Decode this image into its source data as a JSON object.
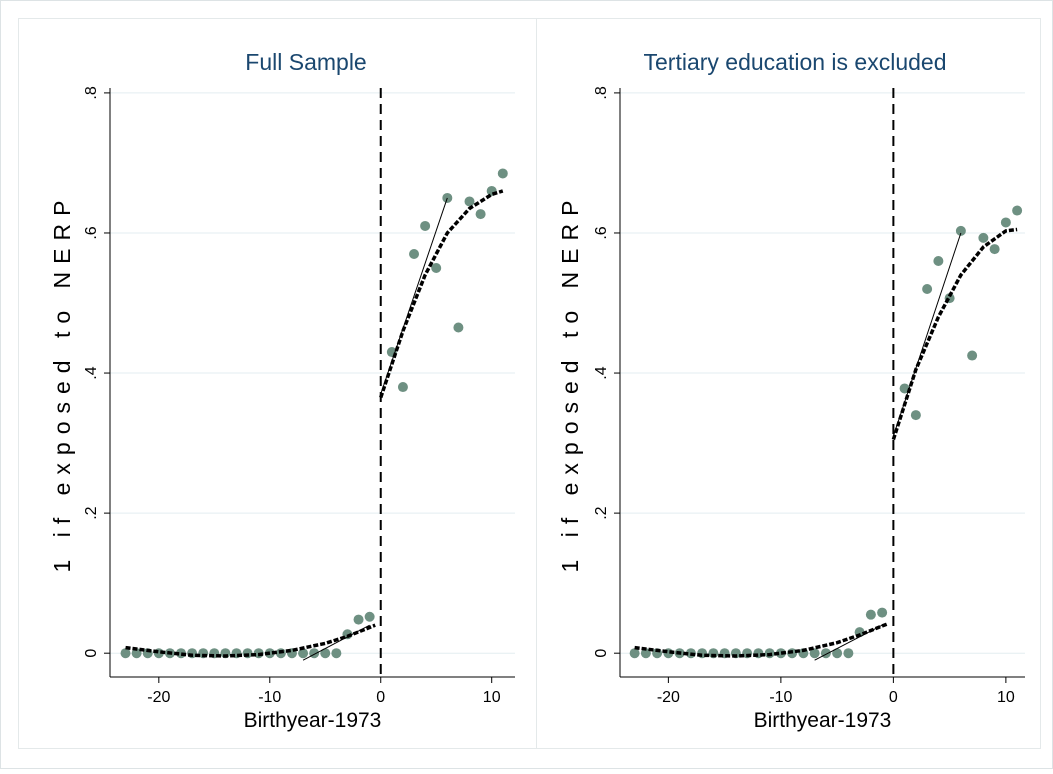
{
  "chart_data": [
    {
      "type": "scatter",
      "title": "Full Sample",
      "x_label": "Birthyear-1973",
      "y_label": "1 if exposed to NERP",
      "xlim": [
        -24.4,
        12.1
      ],
      "ylim": [
        -0.034,
        0.807
      ],
      "xticks": [
        -20,
        -10,
        0,
        10
      ],
      "yticks": [
        0,
        {
          "value": 0.2,
          "label": ".2"
        },
        {
          "value": 0.4,
          "label": ".4"
        },
        {
          "value": 0.6,
          "label": ".6"
        },
        {
          "value": 0.8,
          "label": ".8"
        }
      ],
      "grid": true,
      "xline": 0,
      "series": [
        {
          "style": "markers",
          "color": "#6e9082",
          "x": [
            -23,
            -22,
            -21,
            -20,
            -19,
            -18,
            -17,
            -16,
            -15,
            -14,
            -13,
            -12,
            -11,
            -10,
            -9,
            -8,
            -7,
            -6,
            -5,
            -4,
            -3,
            -2,
            -1,
            1,
            2,
            3,
            4,
            5,
            6,
            7,
            8,
            9,
            10,
            11
          ],
          "values": [
            0,
            0,
            0,
            0,
            0,
            0,
            0,
            0,
            0,
            0,
            0,
            0,
            0,
            0,
            0,
            0,
            0,
            0,
            0,
            0,
            0.027,
            0.048,
            0.052,
            0.43,
            0.38,
            0.57,
            0.61,
            0.55,
            0.65,
            0.465,
            0.645,
            0.627,
            0.66,
            0.685
          ]
        },
        {
          "style": "dashed",
          "color": "#000000",
          "x": [
            -23,
            -20,
            -17,
            -14,
            -11,
            -8,
            -5,
            -3,
            -0.5
          ],
          "values": [
            0.008,
            0.002,
            -0.003,
            -0.004,
            -0.002,
            0.004,
            0.014,
            0.024,
            0.04
          ]
        },
        {
          "style": "dashed",
          "color": "#000000",
          "x": [
            0,
            2,
            4,
            6,
            8,
            10,
            11
          ],
          "values": [
            0.365,
            0.46,
            0.54,
            0.6,
            0.635,
            0.655,
            0.66
          ]
        },
        {
          "style": "solid",
          "color": "#000000",
          "x": [
            -7,
            -1
          ],
          "values": [
            -0.01,
            0.04
          ]
        },
        {
          "style": "solid",
          "color": "#000000",
          "x": [
            0,
            6
          ],
          "values": [
            0.37,
            0.65
          ]
        }
      ]
    },
    {
      "type": "scatter",
      "title": "Tertiary education is excluded",
      "x_label": "Birthyear-1973",
      "y_label": "1 if exposed to NERP",
      "xlim": [
        -24.3,
        11.7
      ],
      "ylim": [
        -0.034,
        0.807
      ],
      "xticks": [
        -20,
        -10,
        0,
        10
      ],
      "yticks": [
        0,
        {
          "value": 0.2,
          "label": ".2"
        },
        {
          "value": 0.4,
          "label": ".4"
        },
        {
          "value": 0.6,
          "label": ".6"
        },
        {
          "value": 0.8,
          "label": ".8"
        }
      ],
      "grid": true,
      "xline": 0,
      "series": [
        {
          "style": "markers",
          "color": "#6e9082",
          "x": [
            -23,
            -22,
            -21,
            -20,
            -19,
            -18,
            -17,
            -16,
            -15,
            -14,
            -13,
            -12,
            -11,
            -10,
            -9,
            -8,
            -7,
            -6,
            -5,
            -4,
            -3,
            -2,
            -1,
            1,
            2,
            3,
            4,
            5,
            6,
            7,
            8,
            9,
            10,
            11
          ],
          "values": [
            0,
            0,
            0,
            0,
            0,
            0,
            0,
            0,
            0,
            0,
            0,
            0,
            0,
            0,
            0,
            0,
            0,
            0,
            0,
            0,
            0.03,
            0.055,
            0.058,
            0.378,
            0.34,
            0.52,
            0.56,
            0.507,
            0.603,
            0.425,
            0.593,
            0.577,
            0.615,
            0.632
          ]
        },
        {
          "style": "dashed",
          "color": "#000000",
          "x": [
            -23,
            -20,
            -17,
            -14,
            -11,
            -8,
            -5,
            -3,
            -0.5
          ],
          "values": [
            0.008,
            0.002,
            -0.003,
            -0.004,
            -0.002,
            0.004,
            0.015,
            0.026,
            0.042
          ]
        },
        {
          "style": "dashed",
          "color": "#000000",
          "x": [
            0,
            2,
            4,
            6,
            8,
            10,
            11
          ],
          "values": [
            0.305,
            0.405,
            0.48,
            0.54,
            0.58,
            0.603,
            0.605
          ]
        },
        {
          "style": "solid",
          "color": "#000000",
          "x": [
            -7,
            -1
          ],
          "values": [
            -0.01,
            0.04
          ]
        },
        {
          "style": "solid",
          "color": "#000000",
          "x": [
            0,
            6
          ],
          "values": [
            0.31,
            0.6
          ]
        }
      ]
    }
  ]
}
